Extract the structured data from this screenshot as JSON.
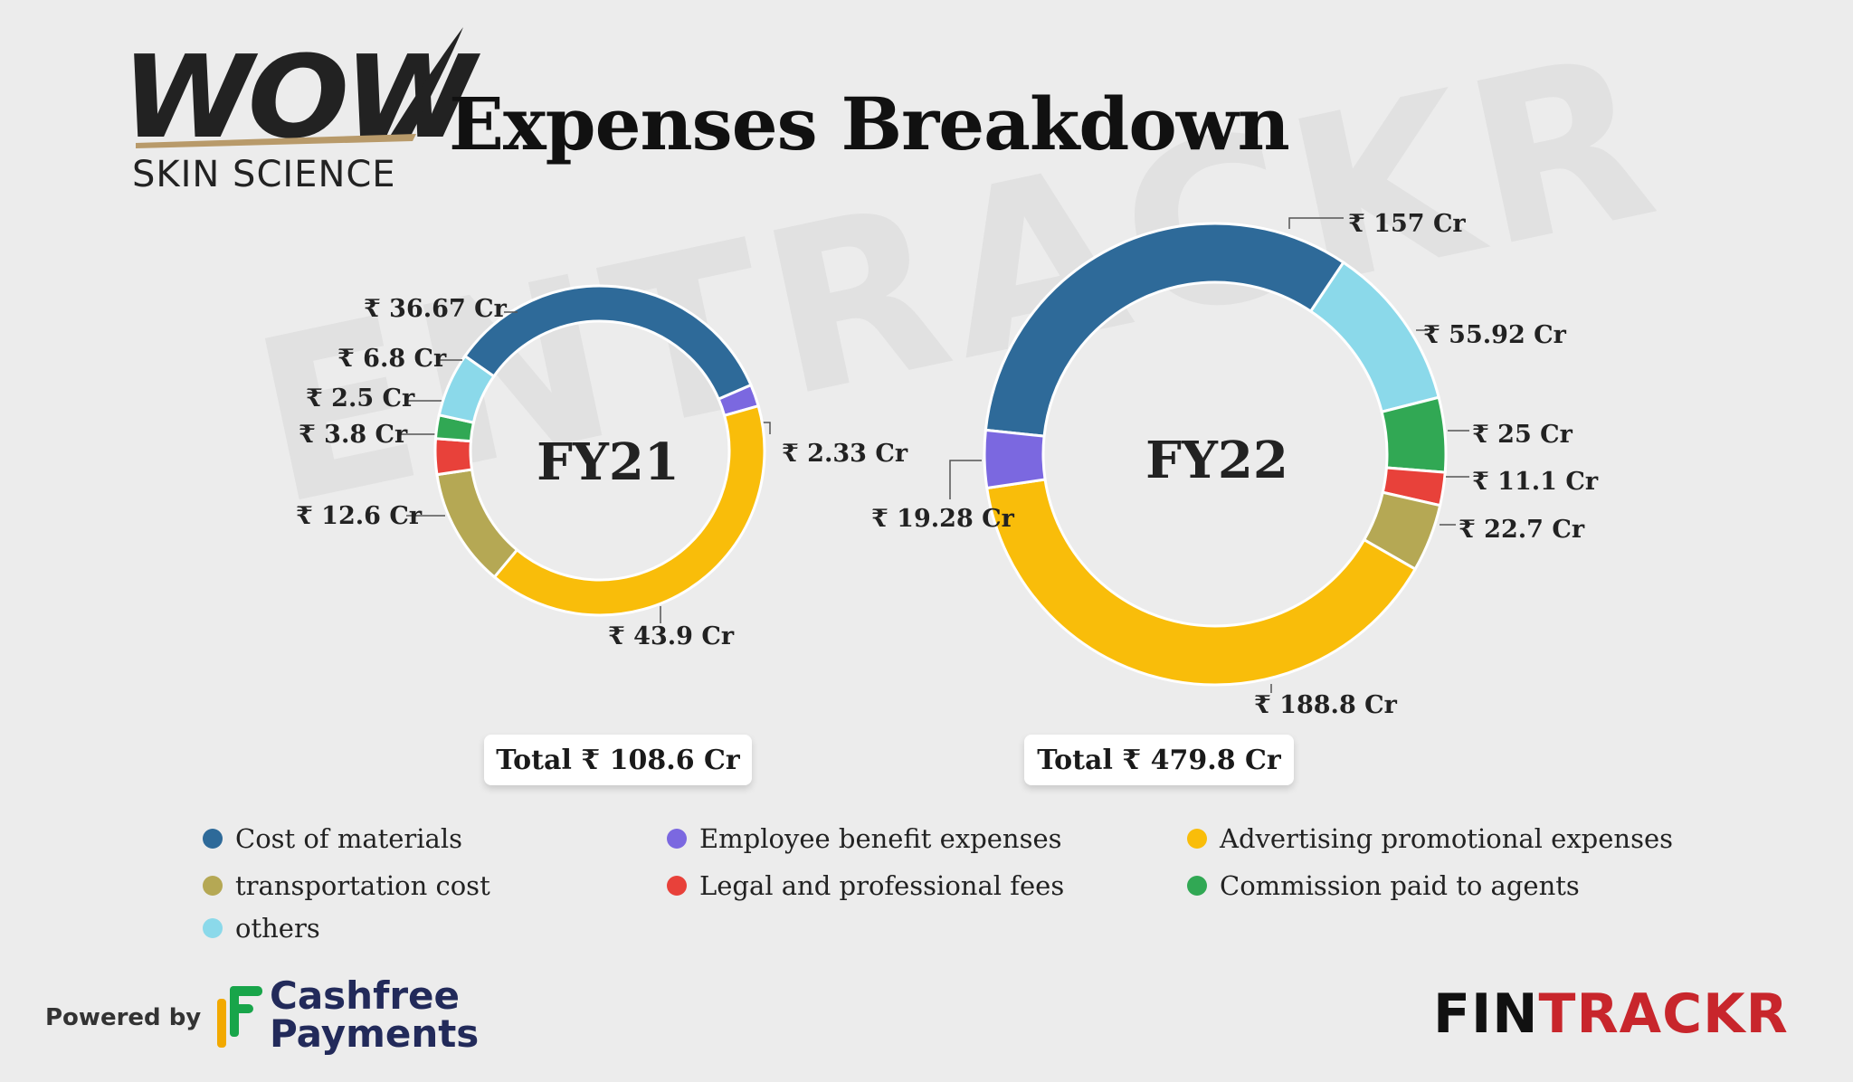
{
  "brand": {
    "logo_text": "WOW",
    "logo_subtext": "SKIN SCIENCE",
    "watermark": "ENTRACKR"
  },
  "title": "Expenses Breakdown",
  "colors": {
    "cost_of_materials": "#2e6a99",
    "employee_benefit": "#7b68e0",
    "advertising": "#f9bd0a",
    "transportation": "#b5a854",
    "legal": "#e8413a",
    "commission": "#31a854",
    "others": "#8bd9ea"
  },
  "chart_data": [
    {
      "type": "pie",
      "variant": "donut",
      "center_label": "FY21",
      "total_label": "Total ₹  108.6 Cr",
      "units": "₹ Cr",
      "slices": [
        {
          "category": "Cost of materials",
          "value": 36.67,
          "label": "₹ 36.67 Cr",
          "color": "#2e6a99"
        },
        {
          "category": "Employee benefit expenses",
          "value": 2.33,
          "label": "₹ 2.33 Cr",
          "color": "#7b68e0"
        },
        {
          "category": "Advertising promotional expenses",
          "value": 43.9,
          "label": "₹ 43.9 Cr",
          "color": "#f9bd0a"
        },
        {
          "category": "transportation cost",
          "value": 12.6,
          "label": "₹ 12.6 Cr",
          "color": "#b5a854"
        },
        {
          "category": "Legal and professional fees",
          "value": 3.8,
          "label": "₹ 3.8 Cr",
          "color": "#e8413a"
        },
        {
          "category": "Commission paid to agents",
          "value": 2.5,
          "label": "₹ 2.5 Cr",
          "color": "#31a854"
        },
        {
          "category": "others",
          "value": 6.8,
          "label": "₹ 6.8 Cr",
          "color": "#8bd9ea"
        }
      ]
    },
    {
      "type": "pie",
      "variant": "donut",
      "center_label": "FY22",
      "total_label": "Total ₹ 479.8 Cr",
      "units": "₹ Cr",
      "slices": [
        {
          "category": "Cost of materials",
          "value": 157,
          "label": "₹ 157 Cr",
          "color": "#2e6a99"
        },
        {
          "category": "others",
          "value": 55.92,
          "label": "₹ 55.92 Cr",
          "color": "#8bd9ea"
        },
        {
          "category": "Commission paid to agents",
          "value": 25,
          "label": "₹ 25 Cr",
          "color": "#31a854"
        },
        {
          "category": "Legal and professional fees",
          "value": 11.1,
          "label": "₹ 11.1 Cr",
          "color": "#e8413a"
        },
        {
          "category": "transportation cost",
          "value": 22.7,
          "label": "₹ 22.7 Cr",
          "color": "#b5a854"
        },
        {
          "category": "Advertising promotional expenses",
          "value": 188.8,
          "label": "₹ 188.8 Cr",
          "color": "#f9bd0a"
        },
        {
          "category": "Employee benefit expenses",
          "value": 19.28,
          "label": "₹ 19.28 Cr",
          "color": "#7b68e0"
        }
      ]
    }
  ],
  "legend": [
    {
      "label": "Cost of materials",
      "color": "#2e6a99"
    },
    {
      "label": "Employee benefit expenses",
      "color": "#7b68e0"
    },
    {
      "label": "Advertising promotional expenses",
      "color": "#f9bd0a"
    },
    {
      "label": "transportation cost",
      "color": "#b5a854"
    },
    {
      "label": "Legal and professional fees",
      "color": "#e8413a"
    },
    {
      "label": "Commission paid to agents",
      "color": "#31a854"
    },
    {
      "label": "others",
      "color": "#8bd9ea"
    }
  ],
  "footer": {
    "powered_by": "Powered by",
    "sponsor_line1": "Cashfree",
    "sponsor_line2": "Payments",
    "publisher_part1": "FIN",
    "publisher_part2": "TRACKR"
  }
}
